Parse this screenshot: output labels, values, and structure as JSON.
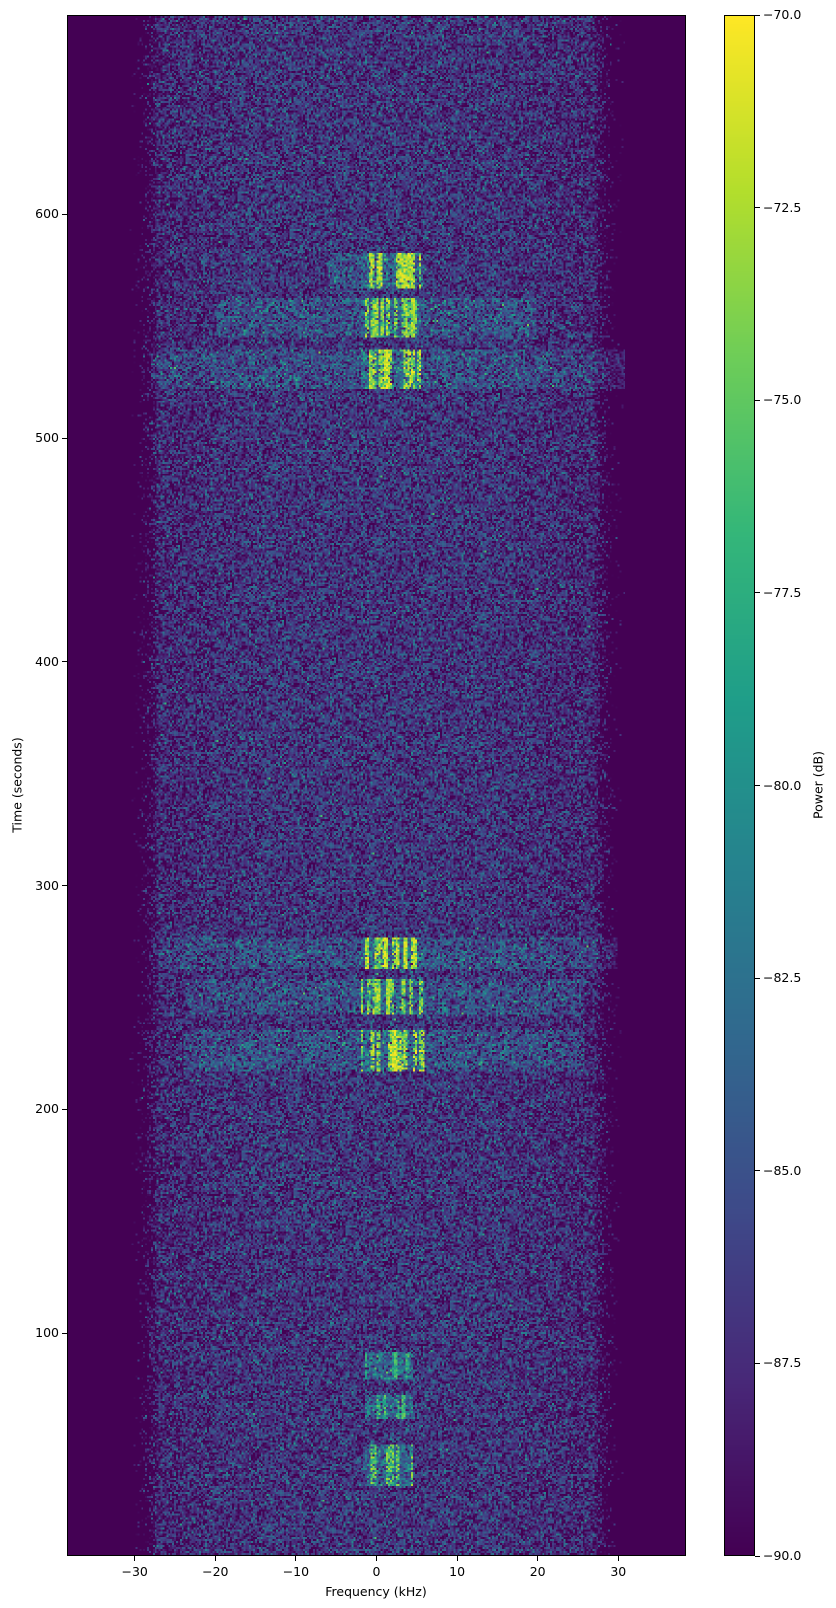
{
  "chart_data": {
    "type": "heatmap",
    "subtype": "spectrogram",
    "xlabel": "Frequency (kHz)",
    "ylabel": "Time (seconds)",
    "xlim": [
      -38.4,
      38.4
    ],
    "ylim": [
      0.5,
      689
    ],
    "xticks": [
      -30,
      -20,
      -10,
      0,
      10,
      20,
      30
    ],
    "xtick_labels": [
      "−30",
      "−20",
      "−10",
      "0",
      "10",
      "20",
      "30"
    ],
    "yticks": [
      100,
      200,
      300,
      400,
      500,
      600
    ],
    "ytick_labels": [
      "100",
      "200",
      "300",
      "400",
      "500",
      "600"
    ],
    "colormap": "viridis",
    "colorbar": {
      "label": "Power (dB)",
      "range": [
        -90,
        -70
      ],
      "ticks": [
        -90,
        -87.5,
        -85,
        -82.5,
        -80,
        -77.5,
        -75,
        -72.5,
        -70
      ],
      "tick_labels": [
        "−90.0",
        "−87.5",
        "−85.0",
        "−82.5",
        "−80.0",
        "−77.5",
        "−75.0",
        "−72.5",
        "−70.0"
      ]
    },
    "noise_floor": {
      "band_khz": [
        -31,
        31
      ],
      "level_db": -87
    },
    "bursts": [
      {
        "t": [
          567,
          583
        ],
        "core_khz": [
          -2,
          5.5
        ],
        "wide_khz": [
          -6,
          6
        ],
        "peak_db": -70
      },
      {
        "t": [
          545,
          563
        ],
        "core_khz": [
          -2,
          5.5
        ],
        "wide_khz": [
          -20,
          20
        ],
        "peak_db": -71
      },
      {
        "t": [
          522,
          540
        ],
        "core_khz": [
          -2,
          5.5
        ],
        "wide_khz": [
          -28,
          32
        ],
        "peak_db": -70
      },
      {
        "t": [
          263,
          277
        ],
        "core_khz": [
          -2,
          6
        ],
        "wide_khz": [
          -27,
          30
        ],
        "peak_db": -70
      },
      {
        "t": [
          242,
          258
        ],
        "core_khz": [
          -2,
          6
        ],
        "wide_khz": [
          -24,
          26
        ],
        "peak_db": -71
      },
      {
        "t": [
          217,
          235
        ],
        "core_khz": [
          -2,
          6
        ],
        "wide_khz": [
          -24,
          26
        ],
        "peak_db": -70
      },
      {
        "t": [
          79,
          91
        ],
        "core_khz": [
          -1.5,
          4.5
        ],
        "wide_khz": [
          -1.5,
          4.5
        ],
        "peak_db": -75
      },
      {
        "t": [
          61,
          72
        ],
        "core_khz": [
          -1.5,
          4.5
        ],
        "wide_khz": [
          -1.5,
          4.5
        ],
        "peak_db": -74
      },
      {
        "t": [
          31,
          50
        ],
        "core_khz": [
          -1.5,
          4.5
        ],
        "wide_khz": [
          -1.5,
          4.5
        ],
        "peak_db": -72
      }
    ]
  }
}
